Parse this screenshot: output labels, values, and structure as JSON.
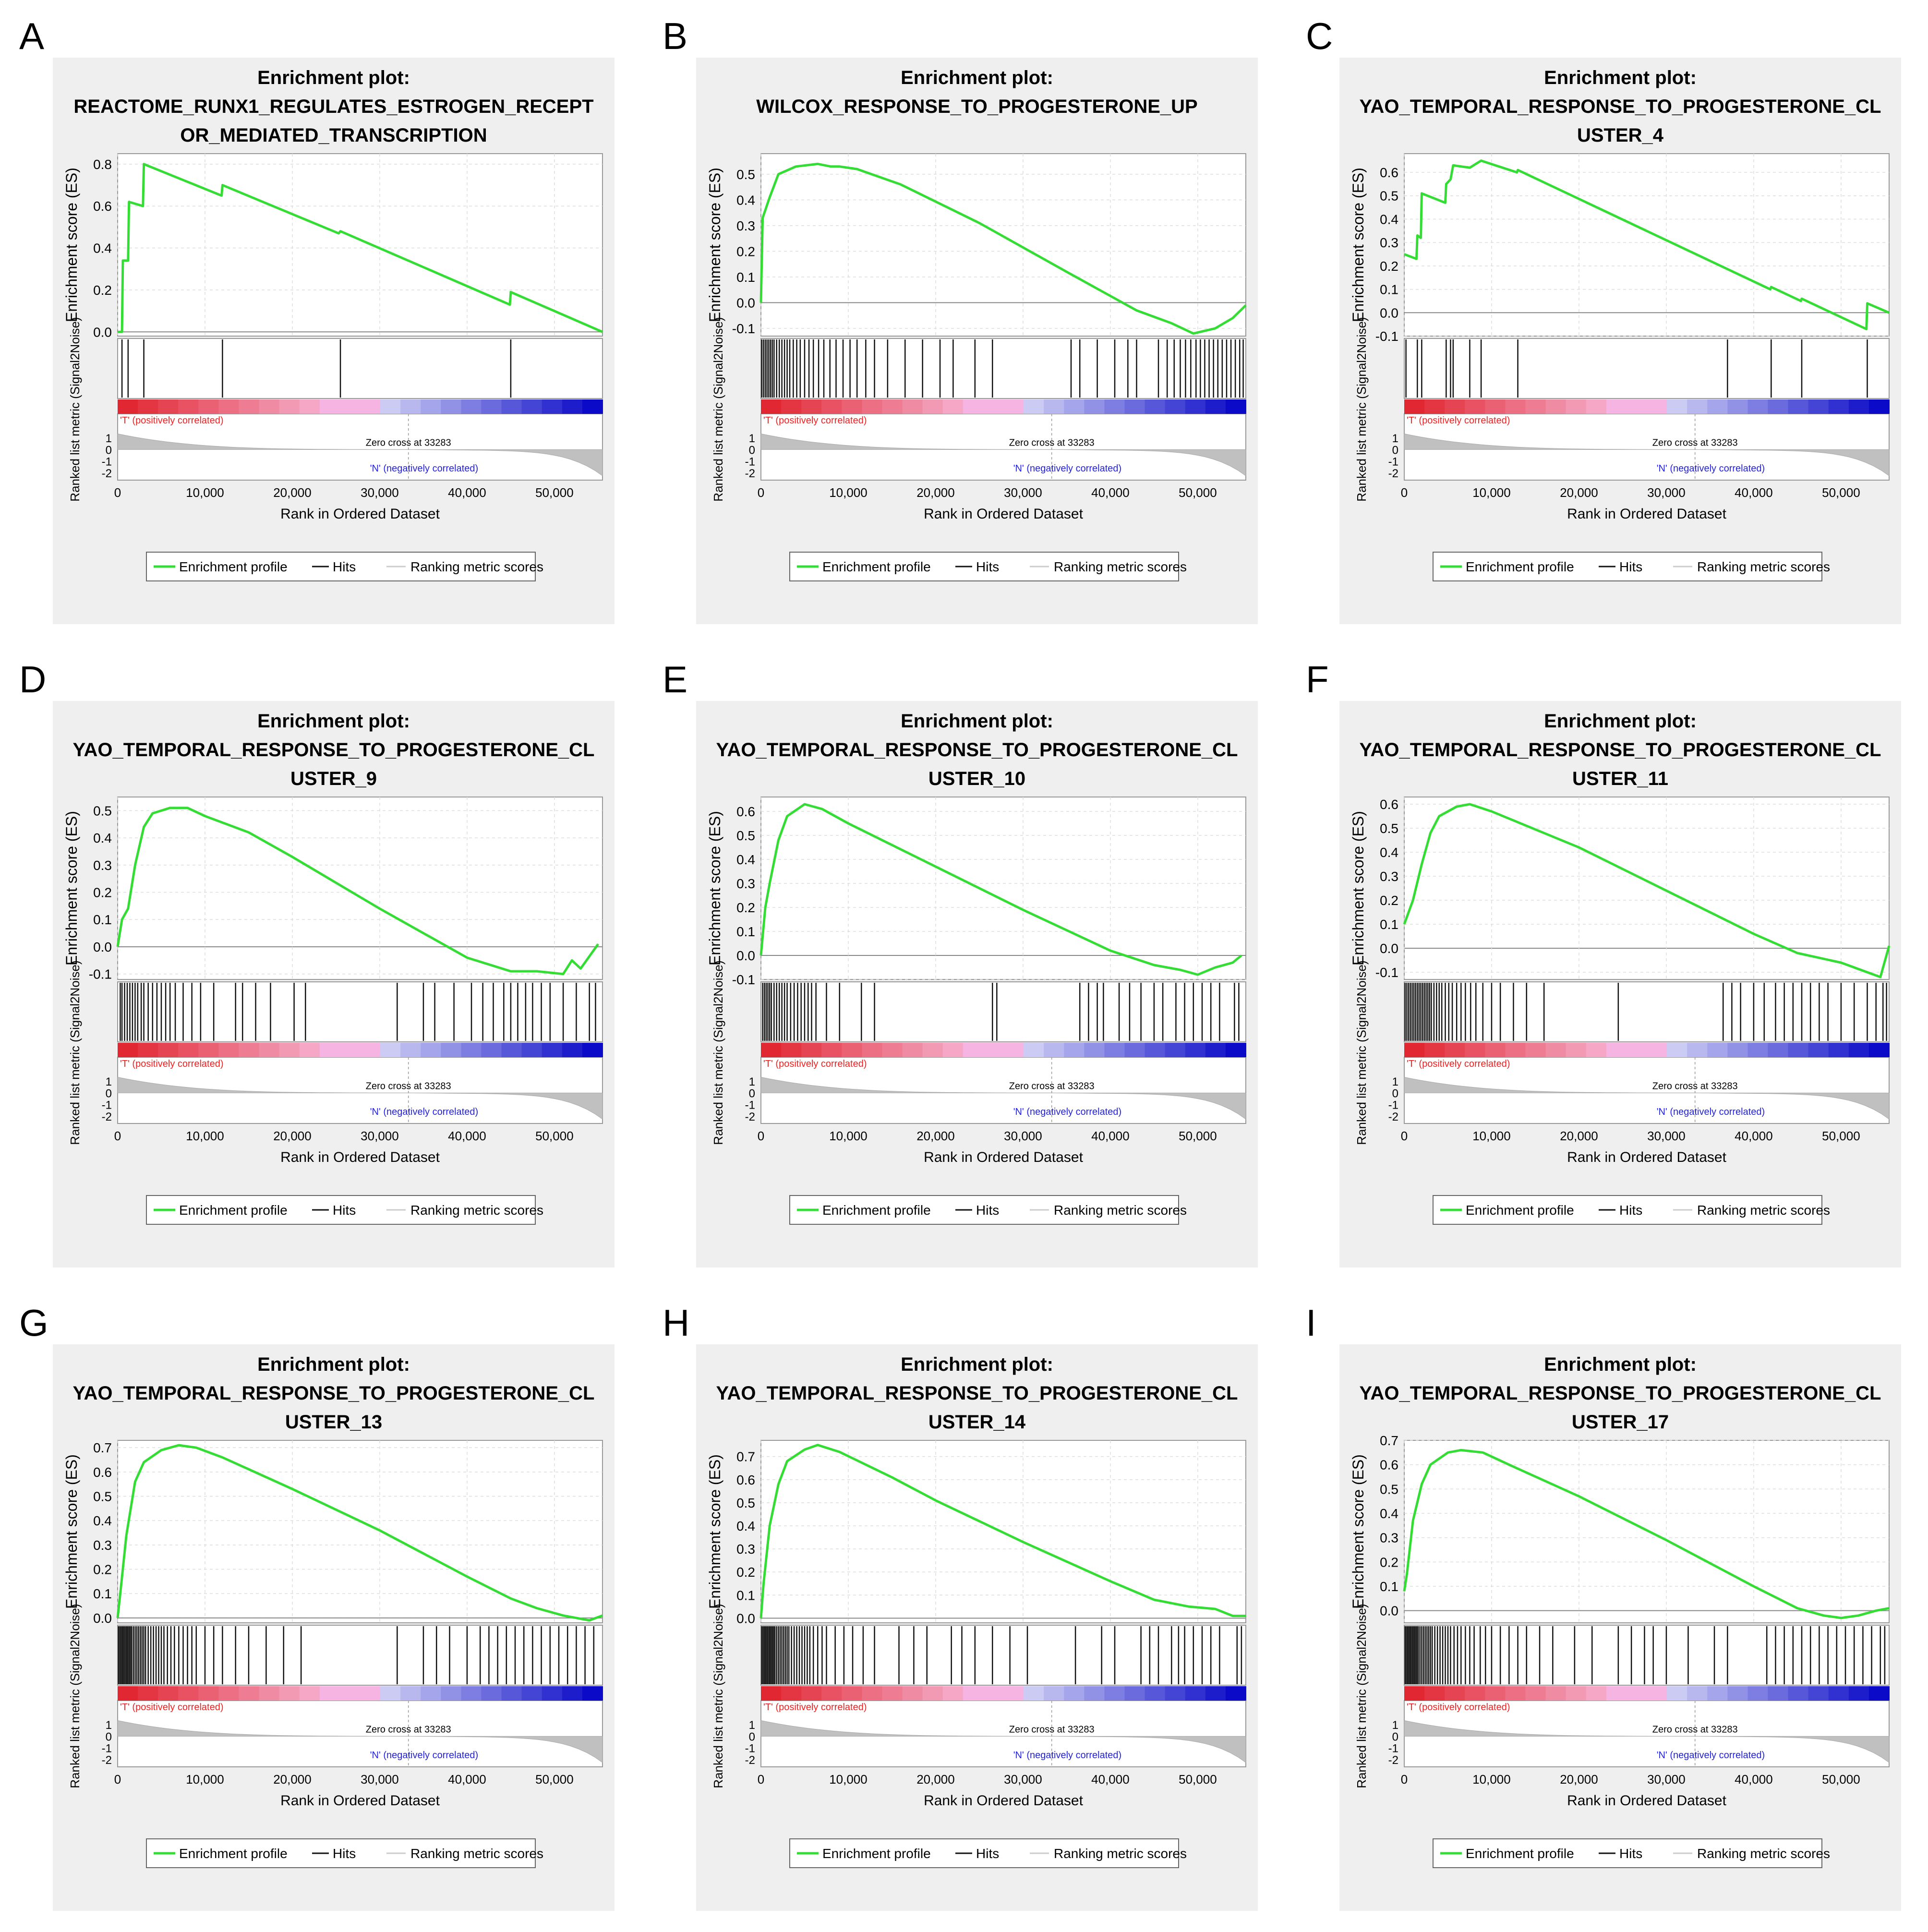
{
  "common": {
    "title_prefix": "Enrichment plot:",
    "es_axis_label": "Enrichment score (ES)",
    "metric_axis_label": "Ranked list metric (Signal2Noise)",
    "x_axis_label": "Rank in Ordered Dataset",
    "x_ticks": [
      "0",
      "10,000",
      "20,000",
      "30,000",
      "40,000",
      "50,000"
    ],
    "metric_ticks": [
      "1",
      "0",
      "-1",
      "-2"
    ],
    "pos_label": "'T' (positively correlated)",
    "neg_label": "'N' (negatively correlated)",
    "zero_cross": "Zero cross at 33283",
    "legend": [
      "Enrichment profile",
      "Hits",
      "Ranking metric scores"
    ],
    "colors": {
      "profile": "#33dd33",
      "pos": "#ee2222",
      "neg": "#2222dd",
      "panel_bg": "#efefef"
    }
  },
  "chart_data": [
    {
      "type": "line",
      "letter": "A",
      "title_lines": [
        "REACTOME_RUNX1_REGULATES_ESTROGEN_RECEPT",
        "OR_MEDIATED_TRANSCRIPTION"
      ],
      "es_ticks": [
        "0.8",
        "0.6",
        "0.4",
        "0.2",
        "0.0"
      ],
      "ylim": [
        -0.02,
        0.85
      ],
      "hits": [
        500,
        1200,
        3000,
        12000,
        25500,
        45000
      ],
      "points": [
        [
          0,
          0
        ],
        [
          500,
          0
        ],
        [
          600,
          0.34
        ],
        [
          1200,
          0.34
        ],
        [
          1300,
          0.62
        ],
        [
          2900,
          0.6
        ],
        [
          3000,
          0.8
        ],
        [
          11900,
          0.65
        ],
        [
          12000,
          0.7
        ],
        [
          25300,
          0.47
        ],
        [
          25500,
          0.48
        ],
        [
          44900,
          0.13
        ],
        [
          45000,
          0.19
        ],
        [
          55500,
          0
        ]
      ]
    },
    {
      "type": "line",
      "letter": "B",
      "title_lines": [
        "WILCOX_RESPONSE_TO_PROGESTERONE_UP"
      ],
      "es_ticks": [
        "0.5",
        "0.4",
        "0.3",
        "0.2",
        "0.1",
        "0.0",
        "-0.1"
      ],
      "ylim": [
        -0.13,
        0.58
      ],
      "hits": [
        100,
        300,
        500,
        700,
        900,
        1100,
        1300,
        1500,
        1800,
        2100,
        2400,
        2700,
        3000,
        3300,
        3700,
        4100,
        4500,
        5000,
        5500,
        6000,
        6600,
        7200,
        7900,
        8600,
        9400,
        10200,
        11000,
        12000,
        13000,
        14500,
        16500,
        18500,
        20500,
        22000,
        24500,
        26500,
        35500,
        36500,
        38500,
        40500,
        42000,
        43000,
        45500,
        46500,
        47300,
        48000,
        48600,
        49200,
        49800,
        50300,
        50800,
        51300,
        51800,
        52300,
        52800,
        53300,
        53800,
        54300,
        54800,
        55200
      ],
      "points": [
        [
          0,
          0
        ],
        [
          200,
          0.33
        ],
        [
          1000,
          0.41
        ],
        [
          2000,
          0.5
        ],
        [
          4000,
          0.53
        ],
        [
          6500,
          0.54
        ],
        [
          8000,
          0.53
        ],
        [
          9000,
          0.53
        ],
        [
          11000,
          0.52
        ],
        [
          16000,
          0.46
        ],
        [
          25000,
          0.31
        ],
        [
          35000,
          0.12
        ],
        [
          43000,
          -0.03
        ],
        [
          47000,
          -0.08
        ],
        [
          49500,
          -0.12
        ],
        [
          52000,
          -0.1
        ],
        [
          54000,
          -0.06
        ],
        [
          55500,
          -0.01
        ]
      ]
    },
    {
      "type": "line",
      "letter": "C",
      "title_lines": [
        "YAO_TEMPORAL_RESPONSE_TO_PROGESTERONE_CL",
        "USTER_4"
      ],
      "es_ticks": [
        "0.6",
        "0.5",
        "0.4",
        "0.3",
        "0.2",
        "0.1",
        "0.0",
        "-0.1"
      ],
      "ylim": [
        -0.1,
        0.68
      ],
      "hits": [
        200,
        1500,
        2000,
        4800,
        5300,
        5600,
        7500,
        8800,
        13000,
        37000,
        42000,
        45500,
        53000
      ],
      "points": [
        [
          0,
          0.25
        ],
        [
          1400,
          0.23
        ],
        [
          1500,
          0.33
        ],
        [
          1900,
          0.32
        ],
        [
          2000,
          0.51
        ],
        [
          4700,
          0.47
        ],
        [
          4800,
          0.55
        ],
        [
          5300,
          0.57
        ],
        [
          5600,
          0.63
        ],
        [
          7500,
          0.62
        ],
        [
          8800,
          0.65
        ],
        [
          12900,
          0.6
        ],
        [
          13000,
          0.61
        ],
        [
          41900,
          0.1
        ],
        [
          42000,
          0.11
        ],
        [
          45400,
          0.05
        ],
        [
          45500,
          0.06
        ],
        [
          52900,
          -0.07
        ],
        [
          53000,
          0.04
        ],
        [
          55500,
          0
        ]
      ]
    },
    {
      "type": "line",
      "letter": "D",
      "title_lines": [
        "YAO_TEMPORAL_RESPONSE_TO_PROGESTERONE_CL",
        "USTER_9"
      ],
      "es_ticks": [
        "0.5",
        "0.4",
        "0.3",
        "0.2",
        "0.1",
        "0.0",
        "-0.1"
      ],
      "ylim": [
        -0.12,
        0.55
      ],
      "hits": [
        300,
        500,
        800,
        1100,
        1400,
        1700,
        2000,
        2300,
        2700,
        3000,
        3500,
        4000,
        4500,
        5000,
        5500,
        6000,
        6600,
        7500,
        8500,
        9500,
        11000,
        13500,
        14300,
        15800,
        17500,
        20200,
        21500,
        32000,
        35000,
        36300,
        38500,
        40500,
        41800,
        43000,
        44200,
        45000,
        45800,
        46700,
        47500,
        48500,
        49500,
        51000,
        52500,
        54000,
        54700
      ],
      "points": [
        [
          0,
          0
        ],
        [
          500,
          0.1
        ],
        [
          1200,
          0.14
        ],
        [
          2000,
          0.3
        ],
        [
          3000,
          0.44
        ],
        [
          4000,
          0.49
        ],
        [
          6000,
          0.51
        ],
        [
          8000,
          0.51
        ],
        [
          10000,
          0.48
        ],
        [
          15000,
          0.42
        ],
        [
          20000,
          0.33
        ],
        [
          30000,
          0.14
        ],
        [
          40000,
          -0.04
        ],
        [
          45000,
          -0.09
        ],
        [
          48000,
          -0.09
        ],
        [
          51000,
          -0.1
        ],
        [
          52000,
          -0.05
        ],
        [
          53000,
          -0.08
        ],
        [
          55000,
          0.01
        ]
      ]
    },
    {
      "type": "line",
      "letter": "E",
      "title_lines": [
        "YAO_TEMPORAL_RESPONSE_TO_PROGESTERONE_CL",
        "USTER_10"
      ],
      "es_ticks": [
        "0.6",
        "0.5",
        "0.4",
        "0.3",
        "0.2",
        "0.1",
        "0.0",
        "-0.1"
      ],
      "ylim": [
        -0.1,
        0.66
      ],
      "hits": [
        200,
        400,
        600,
        800,
        1000,
        1200,
        1500,
        1800,
        2100,
        2400,
        2700,
        3000,
        3400,
        3800,
        4200,
        4600,
        5000,
        5400,
        5800,
        6300,
        7500,
        9000,
        11500,
        13000,
        26500,
        27000,
        36500,
        37500,
        38500,
        39200,
        41000,
        42200,
        43500,
        45000,
        46000,
        47500,
        48500,
        49500,
        50500,
        51500,
        52500,
        54200,
        54700
      ],
      "points": [
        [
          0,
          0
        ],
        [
          500,
          0.2
        ],
        [
          1000,
          0.3
        ],
        [
          2000,
          0.48
        ],
        [
          3000,
          0.58
        ],
        [
          5000,
          0.63
        ],
        [
          7000,
          0.61
        ],
        [
          10000,
          0.55
        ],
        [
          20000,
          0.37
        ],
        [
          30000,
          0.19
        ],
        [
          40000,
          0.02
        ],
        [
          45000,
          -0.04
        ],
        [
          48000,
          -0.06
        ],
        [
          50000,
          -0.08
        ],
        [
          52000,
          -0.05
        ],
        [
          54000,
          -0.03
        ],
        [
          55000,
          0
        ]
      ]
    },
    {
      "type": "line",
      "letter": "F",
      "title_lines": [
        "YAO_TEMPORAL_RESPONSE_TO_PROGESTERONE_CL",
        "USTER_11"
      ],
      "es_ticks": [
        "0.6",
        "0.5",
        "0.4",
        "0.3",
        "0.2",
        "0.1",
        "0.0",
        "-0.1"
      ],
      "ylim": [
        -0.13,
        0.63
      ],
      "hits": [
        100,
        300,
        500,
        700,
        900,
        1100,
        1300,
        1500,
        1700,
        1900,
        2100,
        2300,
        2500,
        2700,
        2900,
        3100,
        3400,
        3700,
        4000,
        4300,
        4700,
        5100,
        5500,
        6000,
        6500,
        7000,
        7600,
        8200,
        9000,
        10000,
        11000,
        12500,
        14000,
        16000,
        24500,
        36500,
        37500,
        38500,
        40000,
        41200,
        42500,
        43500,
        44500,
        45500,
        46500,
        47500,
        48500,
        50000,
        51500,
        53000,
        54000,
        54800,
        55200
      ],
      "points": [
        [
          0,
          0.1
        ],
        [
          1000,
          0.2
        ],
        [
          2000,
          0.35
        ],
        [
          3000,
          0.48
        ],
        [
          4000,
          0.55
        ],
        [
          6000,
          0.59
        ],
        [
          7500,
          0.6
        ],
        [
          10000,
          0.57
        ],
        [
          20000,
          0.42
        ],
        [
          30000,
          0.24
        ],
        [
          40000,
          0.06
        ],
        [
          45000,
          -0.02
        ],
        [
          50000,
          -0.06
        ],
        [
          53000,
          -0.1
        ],
        [
          54500,
          -0.12
        ],
        [
          55500,
          0.01
        ]
      ]
    },
    {
      "type": "line",
      "letter": "G",
      "title_lines": [
        "YAO_TEMPORAL_RESPONSE_TO_PROGESTERONE_CL",
        "USTER_13"
      ],
      "es_ticks": [
        "0.7",
        "0.6",
        "0.5",
        "0.4",
        "0.3",
        "0.2",
        "0.1",
        "0.0"
      ],
      "ylim": [
        -0.02,
        0.73
      ],
      "hits": [
        100,
        250,
        400,
        550,
        700,
        850,
        1000,
        1150,
        1300,
        1450,
        1600,
        1800,
        2000,
        2200,
        2400,
        2600,
        2800,
        3000,
        3200,
        3500,
        3800,
        4100,
        4400,
        4700,
        5000,
        5300,
        5700,
        6100,
        6500,
        7000,
        7500,
        8000,
        8500,
        9000,
        10000,
        11000,
        12000,
        13500,
        15000,
        17000,
        19000,
        21000,
        32000,
        35000,
        36500,
        38000,
        40000,
        41500,
        42500,
        43500,
        44500,
        45500,
        46500,
        47500,
        48500,
        49500,
        50500,
        51500,
        52500,
        53500,
        54500
      ],
      "points": [
        [
          0,
          0
        ],
        [
          300,
          0.1
        ],
        [
          1000,
          0.34
        ],
        [
          2000,
          0.56
        ],
        [
          3000,
          0.64
        ],
        [
          5000,
          0.69
        ],
        [
          7000,
          0.71
        ],
        [
          9000,
          0.7
        ],
        [
          12000,
          0.66
        ],
        [
          20000,
          0.53
        ],
        [
          30000,
          0.36
        ],
        [
          40000,
          0.17
        ],
        [
          45000,
          0.08
        ],
        [
          48000,
          0.04
        ],
        [
          51000,
          0.01
        ],
        [
          54000,
          -0.01
        ],
        [
          55500,
          0.01
        ]
      ]
    },
    {
      "type": "line",
      "letter": "H",
      "title_lines": [
        "YAO_TEMPORAL_RESPONSE_TO_PROGESTERONE_CL",
        "USTER_14"
      ],
      "es_ticks": [
        "0.7",
        "0.6",
        "0.5",
        "0.4",
        "0.3",
        "0.2",
        "0.1",
        "0.0"
      ],
      "ylim": [
        -0.02,
        0.77
      ],
      "hits": [
        100,
        250,
        400,
        550,
        700,
        850,
        1000,
        1150,
        1300,
        1450,
        1600,
        1800,
        2000,
        2200,
        2400,
        2600,
        2800,
        3000,
        3200,
        3500,
        3800,
        4100,
        4400,
        4700,
        5000,
        5300,
        5600,
        6000,
        6500,
        7000,
        7500,
        8500,
        9500,
        10500,
        11700,
        13000,
        15800,
        17500,
        19000,
        21800,
        23000,
        24500,
        26500,
        28500,
        30500,
        36000,
        39000,
        40500,
        43500,
        44500,
        45500,
        47000,
        47800,
        48500,
        49500,
        50500,
        51500,
        52500,
        54500,
        55000
      ],
      "points": [
        [
          0,
          0
        ],
        [
          300,
          0.15
        ],
        [
          1000,
          0.4
        ],
        [
          2000,
          0.58
        ],
        [
          3000,
          0.68
        ],
        [
          5000,
          0.73
        ],
        [
          6500,
          0.75
        ],
        [
          9000,
          0.72
        ],
        [
          15000,
          0.61
        ],
        [
          20000,
          0.51
        ],
        [
          30000,
          0.33
        ],
        [
          40000,
          0.16
        ],
        [
          45000,
          0.08
        ],
        [
          49000,
          0.05
        ],
        [
          52000,
          0.04
        ],
        [
          54000,
          0.01
        ],
        [
          55500,
          0.01
        ]
      ]
    },
    {
      "type": "line",
      "letter": "I",
      "title_lines": [
        "YAO_TEMPORAL_RESPONSE_TO_PROGESTERONE_CL",
        "USTER_17"
      ],
      "es_ticks": [
        "0.7",
        "0.6",
        "0.5",
        "0.4",
        "0.3",
        "0.2",
        "0.1",
        "0.0"
      ],
      "ylim": [
        -0.05,
        0.7
      ],
      "hits": [
        100,
        250,
        400,
        550,
        700,
        850,
        1000,
        1150,
        1300,
        1450,
        1600,
        1800,
        2000,
        2200,
        2400,
        2600,
        2800,
        3000,
        3200,
        3500,
        3800,
        4100,
        4400,
        4700,
        5000,
        5300,
        5700,
        6100,
        6500,
        7000,
        7500,
        8000,
        8700,
        9300,
        10000,
        11000,
        12000,
        13000,
        14000,
        15500,
        17000,
        19500,
        21500,
        24500,
        26000,
        27500,
        28500,
        30000,
        32500,
        35500,
        37000,
        41500,
        42500,
        43500,
        44500,
        45500,
        46500,
        47500,
        48500,
        49500,
        50500,
        51500,
        52500,
        53500,
        54500,
        55000
      ],
      "points": [
        [
          0,
          0.08
        ],
        [
          300,
          0.15
        ],
        [
          1000,
          0.37
        ],
        [
          2000,
          0.52
        ],
        [
          3000,
          0.6
        ],
        [
          5000,
          0.65
        ],
        [
          6500,
          0.66
        ],
        [
          9000,
          0.65
        ],
        [
          12000,
          0.6
        ],
        [
          20000,
          0.47
        ],
        [
          30000,
          0.29
        ],
        [
          40000,
          0.1
        ],
        [
          45000,
          0.01
        ],
        [
          48000,
          -0.02
        ],
        [
          50000,
          -0.03
        ],
        [
          52000,
          -0.02
        ],
        [
          54000,
          0
        ],
        [
          55500,
          0.01
        ]
      ]
    }
  ]
}
